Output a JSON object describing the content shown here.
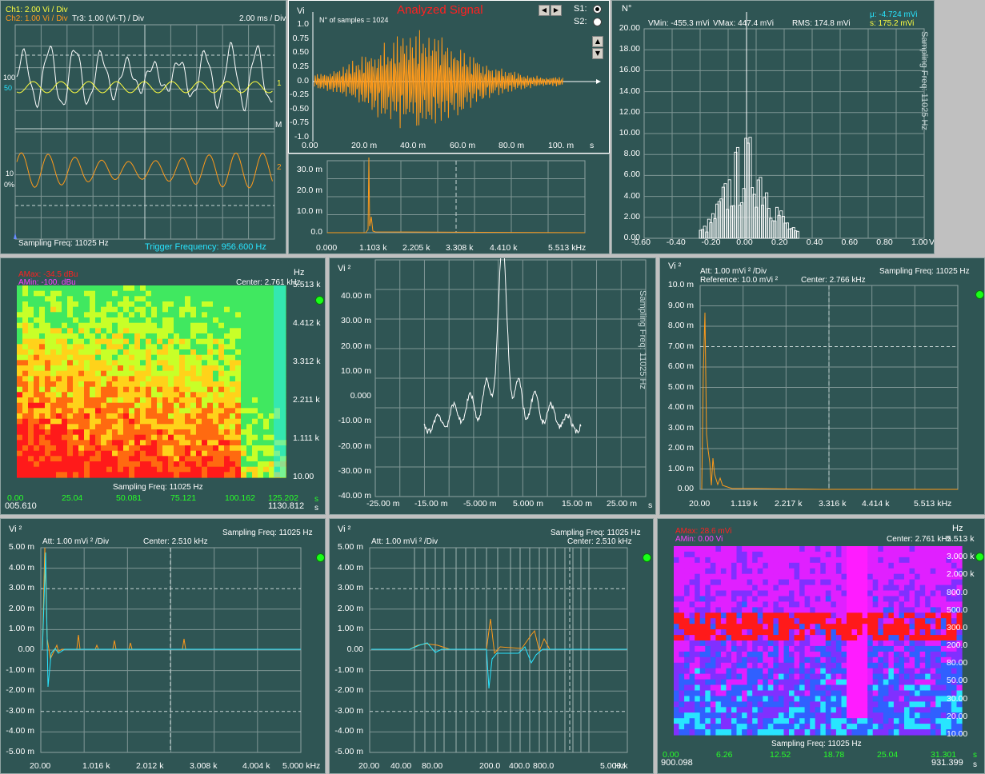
{
  "colors": {
    "panel_bg": "#2f5554",
    "grid": "#8fa3a2",
    "trace_orange": "#ff9a1a",
    "trace_cyan": "#28e5ff",
    "trace_white": "#ffffff",
    "trace_yellow": "#ffff40"
  },
  "oscilloscope": {
    "ch1": "Ch1: 2.00 Vi / Div",
    "ch2": "Ch2: 1.00 Vi / Div",
    "tr3": "Tr3: 1.00 (Vi-T) / Div",
    "timebase": "2.00 ms / Div",
    "marker_100": "100",
    "marker_10": "10",
    "marker_0pct": "0%",
    "marker_50": "50",
    "marker_1": "1",
    "marker_2": "2",
    "marker_m": "M",
    "sampling": "Sampling Freq: 11025 Hz",
    "trigger": "Trigger Frequency: 956.600 Hz"
  },
  "analyzed": {
    "title": "Analyzed Signal",
    "yaxis": "Vi",
    "samples": "N° of samples = 1024",
    "s1": "S1:",
    "s2": "S2:",
    "yticks": [
      "1.0",
      "0.75",
      "0.50",
      "0.25",
      "0.0",
      "-0.25",
      "-0.50",
      "-0.75",
      "-1.0"
    ],
    "xticks": [
      "0.00",
      "20.0 m",
      "40.0 m",
      "60.0 m",
      "80.0 m",
      "100. m"
    ],
    "xunit": "s"
  },
  "spectrum_small": {
    "yticks": [
      "30.0 m",
      "20.0 m",
      "10.0 m",
      "0.0"
    ],
    "xticks": [
      "0.000",
      "1.103 k",
      "2.205 k",
      "3.308 k",
      "4.410 k",
      "5.513 kHz"
    ]
  },
  "histogram": {
    "yaxis": "N°",
    "vmin": "VMin: -455.3 mVi",
    "vmax": "VMax: 447.4 mVi",
    "rms": "RMS: 174.8 mVi",
    "mu": "μ: -4.724 mVi",
    "sigma": "s: 175.2 mVi",
    "side": "Sampling Freq: 11025 Hz",
    "yticks": [
      "20.00",
      "18.00",
      "16.00",
      "14.00",
      "12.00",
      "10.00",
      "8.00",
      "6.00",
      "4.00",
      "2.00",
      "0.00"
    ],
    "xticks": [
      "-0.60",
      "-0.40",
      "-0.20",
      "0.00",
      "0.20",
      "0.40",
      "0.60",
      "0.80",
      "1.00"
    ],
    "xunit": "Vi"
  },
  "spectrogram1": {
    "amax": "AMax: -34.5 dBu",
    "amin": "AMin: -100. dBu",
    "center": "Center: 2.761 kHz",
    "hz": "Hz",
    "yticks": [
      "5.513 k",
      "4.412 k",
      "3.312 k",
      "2.211 k",
      "1.111 k",
      "10.00"
    ],
    "xticks": [
      "0.00",
      "25.04",
      "50.081",
      "75.121",
      "100.162",
      "125.202"
    ],
    "xunit": "s",
    "sampling": "Sampling Freq: 11025 Hz",
    "start": "005.610",
    "end": "1130.812",
    "end_unit": "s"
  },
  "autocorr": {
    "yaxis": "Vi ²",
    "side": "Sampling Freq: 11025 Hz",
    "yticks": [
      "40.00 m",
      "30.00 m",
      "20.00 m",
      "10.00 m",
      "0.000",
      "-10.00 m",
      "-20.00 m",
      "-30.00 m",
      "-40.00 m"
    ],
    "xticks": [
      "-25.00 m",
      "-15.00 m",
      "-5.000 m",
      "5.000 m",
      "15.00 m",
      "25.00 m"
    ],
    "xunit": "s"
  },
  "power_spectrum": {
    "yaxis": "Vi ²",
    "att": "Att: 1.00 mVi ² /Div",
    "ref": "Reference: 10.0 mVi ²",
    "center": "Center: 2.766 kHz",
    "sampling": "Sampling Freq: 11025 Hz",
    "yticks": [
      "10.0 m",
      "9.00 m",
      "8.00 m",
      "7.00 m",
      "6.00 m",
      "5.00 m",
      "4.00 m",
      "3.00 m",
      "2.00 m",
      "1.00 m",
      "0.00"
    ],
    "xticks": [
      "20.00",
      "1.119 k",
      "2.217 k",
      "3.316 k",
      "4.414 k",
      "5.513 kHz"
    ]
  },
  "cross_lin": {
    "yaxis": "Vi ²",
    "att": "Att: 1.00 mVi ² /Div",
    "center": "Center: 2.510 kHz",
    "sampling": "Sampling Freq: 11025 Hz",
    "yticks": [
      "5.00 m",
      "4.00 m",
      "3.00 m",
      "2.00 m",
      "1.00 m",
      "0.00",
      "-1.00 m",
      "-2.00 m",
      "-3.00 m",
      "-4.00 m",
      "-5.00 m"
    ],
    "xticks": [
      "20.00",
      "1.016 k",
      "2.012 k",
      "3.008 k",
      "4.004 k",
      "5.000 kHz"
    ]
  },
  "cross_log": {
    "yaxis": "Vi ²",
    "att": "Att: 1.00 mVi ² /Div",
    "center": "Center: 2.510 kHz",
    "sampling": "Sampling Freq: 11025 Hz",
    "yticks": [
      "5.00 m",
      "4.00 m",
      "3.00 m",
      "2.00 m",
      "1.00 m",
      "0.00",
      "-1.00 m",
      "-2.00 m",
      "-3.00 m",
      "-4.00 m",
      "-5.00 m"
    ],
    "xticks": [
      "20.00",
      "40.00",
      "80.00",
      "200.0",
      "400.0",
      "800.0",
      "5.000 k",
      "Hz"
    ]
  },
  "spectrogram2": {
    "amax": "AMax: 28.6 mVi",
    "amin": "AMin: 0.00 Vi",
    "center": "Center: 2.761 kHz",
    "hz": "Hz",
    "yticks": [
      "5.513 k",
      "3.000 k",
      "2.000 k",
      "800.0",
      "500.0",
      "300.0",
      "200.0",
      "80.00",
      "50.00",
      "30.00",
      "20.00",
      "10.00"
    ],
    "xticks": [
      "0.00",
      "6.26",
      "12.52",
      "18.78",
      "25.04",
      "31.301"
    ],
    "xunit": "s",
    "sampling": "Sampling Freq: 11025 Hz",
    "start": "900.098",
    "end": "931.399",
    "end_unit": "s"
  }
}
